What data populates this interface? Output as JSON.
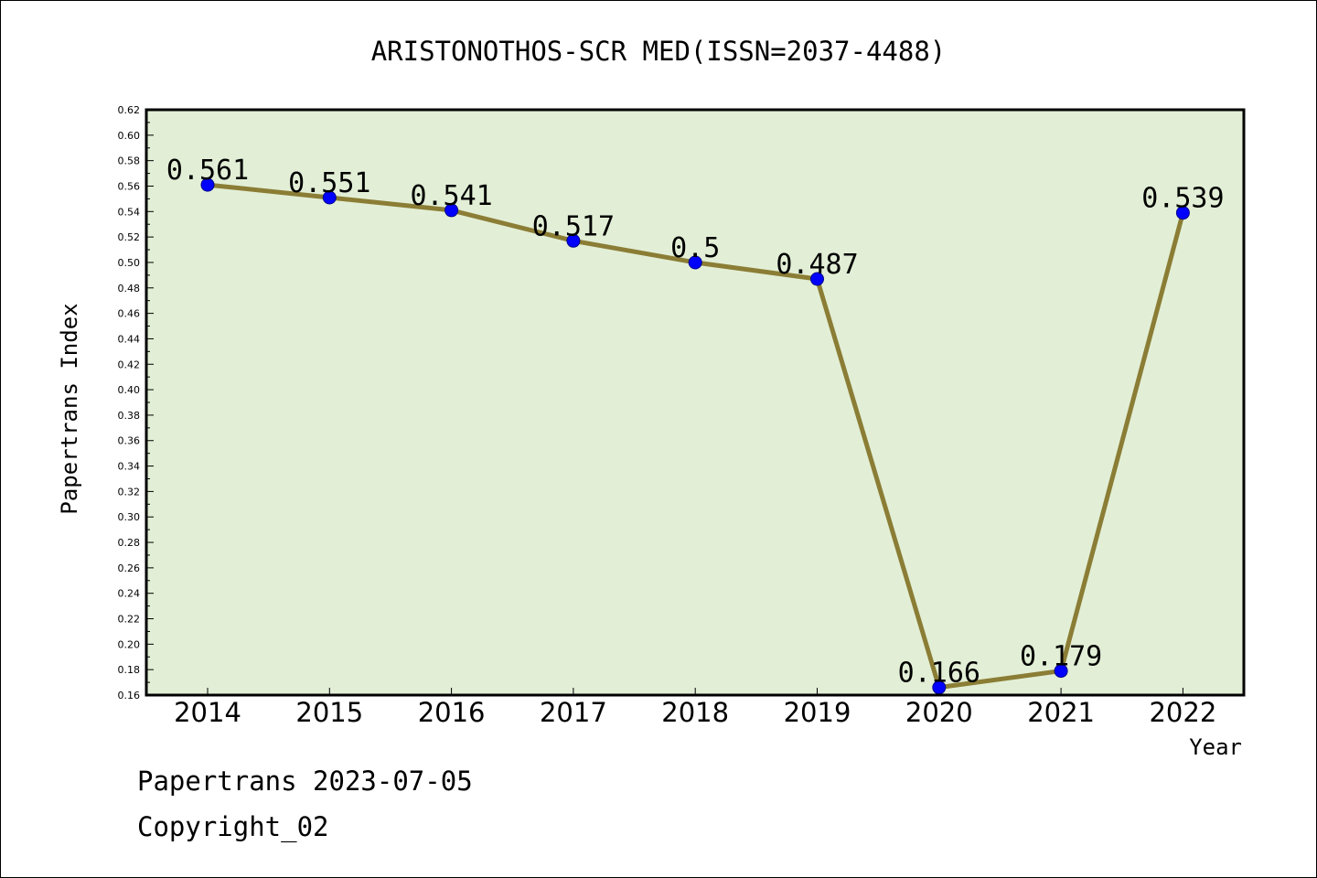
{
  "chart_data": {
    "type": "line",
    "title": "ARISTONOTHOS-SCR MED(ISSN=2037-4488)",
    "xlabel": "Year",
    "ylabel": "Papertrans Index",
    "x": [
      "2014",
      "2015",
      "2016",
      "2017",
      "2018",
      "2019",
      "2020",
      "2021",
      "2022"
    ],
    "series": [
      {
        "values": [
          0.561,
          0.551,
          0.541,
          0.517,
          0.5,
          0.487,
          0.166,
          0.179,
          0.539
        ],
        "labels": [
          "0.561",
          "0.551",
          "0.541",
          "0.517",
          "0.5",
          "0.487",
          "0.166",
          "0.179",
          "0.539"
        ]
      }
    ],
    "ylim": [
      0.16,
      0.62
    ],
    "ytick_step": 0.02,
    "grid": false,
    "colors": {
      "plot_bg": "#e2efd6",
      "line": "#8b7d35",
      "marker": "#0000ff"
    }
  },
  "footer": {
    "line1": "Papertrans 2023-07-05",
    "line2": "Copyright_02"
  }
}
